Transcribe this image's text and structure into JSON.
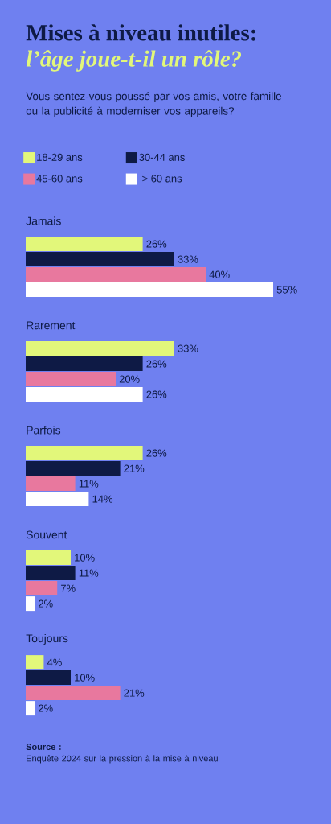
{
  "chart_data": {
    "type": "bar",
    "orientation": "horizontal",
    "title": "Mises à niveau inutiles:",
    "subtitle": "l’âge joue-t-il un rôle?",
    "annotations": [
      "Vous sentez-vous poussé par vos amis, votre famille ou la publicité à moderniser vos appareils?",
      "Source :",
      "Enquête 2024 sur la pression à la mise à niveau"
    ],
    "categories": [
      "Jamais",
      "Rarement",
      "Parfois",
      "Souvent",
      "Toujours"
    ],
    "legend": "top",
    "series": [
      {
        "name": "18-29 ans",
        "color": "#e2f77a",
        "values": [
          26,
          33,
          26,
          10,
          4
        ],
        "value_labels": [
          "26%",
          "33%",
          "26%",
          "10%",
          "4%"
        ]
      },
      {
        "name": "30-44 ans",
        "color": "#0e1a45",
        "values": [
          33,
          26,
          21,
          11,
          10
        ],
        "value_labels": [
          "33%",
          "26%",
          "21%",
          "11%",
          "10%"
        ]
      },
      {
        "name": "45-60 ans",
        "color": "#e8789e",
        "values": [
          40,
          20,
          11,
          7,
          21
        ],
        "value_labels": [
          "40%",
          "20%",
          "11%",
          "7%",
          "21%"
        ]
      },
      {
        "name": "> 60 ans",
        "color": "#ffffff",
        "values": [
          55,
          26,
          14,
          2,
          2
        ],
        "value_labels": [
          "55%",
          "26%",
          "14%",
          "2%",
          "2%"
        ]
      }
    ]
  }
}
